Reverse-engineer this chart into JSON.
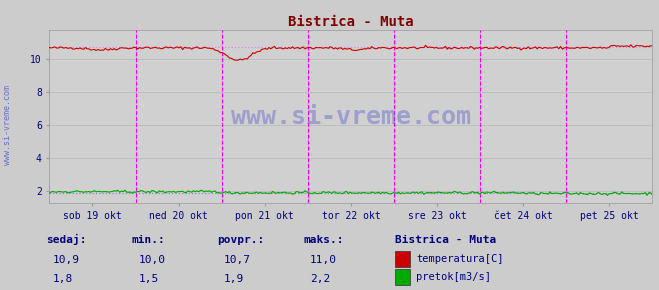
{
  "title": "Bistrica - Muta",
  "title_color": "#800000",
  "bg_color": "#cccccc",
  "plot_bg_color": "#d0d0d0",
  "yticks": [
    2,
    4,
    6,
    8,
    10
  ],
  "ylim": [
    1.3,
    11.7
  ],
  "n_points": 336,
  "temp_avg": 10.7,
  "flow_avg": 1.9,
  "temp_color": "#cc0000",
  "flow_color": "#00aa00",
  "avg_color_temp": "#dd88dd",
  "avg_color_flow": "#8888cc",
  "grid_color": "#bbbbbb",
  "vline_color": "#ff00ff",
  "tick_label_color": "#000080",
  "watermark": "www.si-vreme.com",
  "watermark_color": "#4444cc",
  "station_label": "Bistrica - Muta",
  "legend_labels": [
    "temperatura[C]",
    "pretok[m3/s]"
  ],
  "x_tick_labels": [
    "sob 19 okt",
    "ned 20 okt",
    "pon 21 okt",
    "tor 22 okt",
    "sre 23 okt",
    "čet 24 okt",
    "pet 25 okt"
  ],
  "bottom_labels": [
    "sedaj:",
    "min.:",
    "povpr.:",
    "maks.:"
  ],
  "bottom_vals_temp": [
    "10,9",
    "10,0",
    "10,7",
    "11,0"
  ],
  "bottom_vals_flow": [
    "1,8",
    "1,5",
    "1,9",
    "2,2"
  ]
}
